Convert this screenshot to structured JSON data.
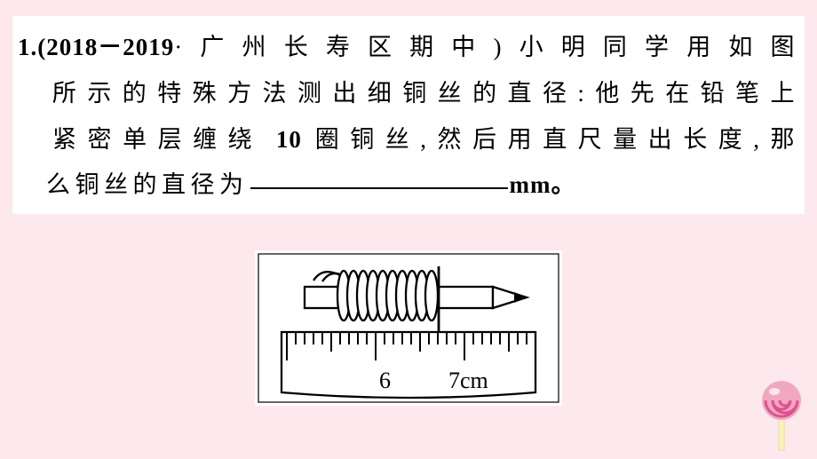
{
  "question": {
    "num": "1.",
    "source_open": "(2018－2019",
    "dot": "·",
    "source_loc": "广州长寿区期中)",
    "line1_tail": "小明同学用如图",
    "line2": "所示的特殊方法测出细铜丝的直径:他先在铅笔上",
    "line3a": "紧密单层缠绕",
    "turns": " 10 ",
    "line3b": "圈铜丝,然后用直尺量出长度,那",
    "line4a": "么铜丝的直径为",
    "unit": "mm。"
  },
  "fig": {
    "type": "diagram",
    "background_color": "#ffffff",
    "stroke_color": "#000000",
    "ruler": {
      "small_ticks_step": 1,
      "major_labels": [
        "6",
        "7cm"
      ],
      "label_fontsize": 24,
      "label_font": "Times New Roman"
    },
    "coil": {
      "turns": 10
    }
  },
  "page": {
    "bg": "#fce8ed",
    "text_bg": "#ffffff"
  },
  "lollipop": {
    "colors": {
      "stick": "#f7f3b5",
      "head": "#f0a8c0",
      "swirl": "#e05090",
      "highlight": "#ffffff"
    }
  }
}
